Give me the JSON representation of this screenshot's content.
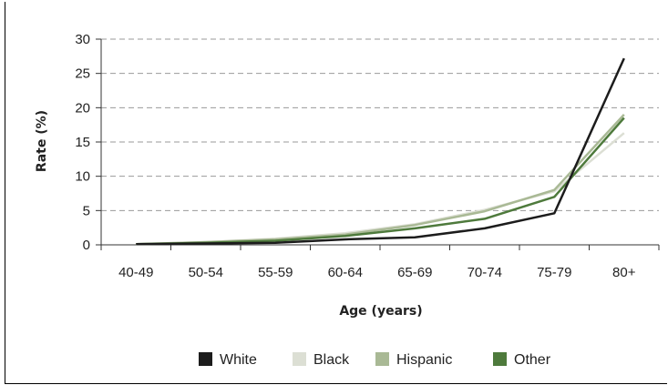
{
  "chart_data": {
    "type": "line",
    "title": "",
    "xlabel": "Age (years)",
    "ylabel": "Rate (%)",
    "categories": [
      "40-49",
      "50-54",
      "55-59",
      "60-64",
      "65-69",
      "70-74",
      "75-79",
      "80+"
    ],
    "ylim": [
      0,
      30
    ],
    "yticks": [
      0,
      5,
      10,
      15,
      20,
      25,
      30
    ],
    "grid": "horizontal dashed",
    "legend_placement": "bottom",
    "series": [
      {
        "name": "White",
        "color": "#1c1c1c",
        "values": [
          0.1,
          0.2,
          0.3,
          0.8,
          1.1,
          2.4,
          4.6,
          27.2
        ]
      },
      {
        "name": "Black",
        "color": "#dcdfd4",
        "values": [
          0.1,
          0.4,
          0.9,
          1.7,
          3.0,
          5.1,
          7.8,
          16.3
        ]
      },
      {
        "name": "Hispanic",
        "color": "#a9b995",
        "values": [
          0.1,
          0.4,
          0.8,
          1.5,
          2.9,
          4.9,
          8.0,
          19.0
        ]
      },
      {
        "name": "Other",
        "color": "#4e7a3c",
        "values": [
          0.1,
          0.3,
          0.6,
          1.3,
          2.4,
          3.8,
          7.0,
          18.5
        ]
      }
    ]
  }
}
